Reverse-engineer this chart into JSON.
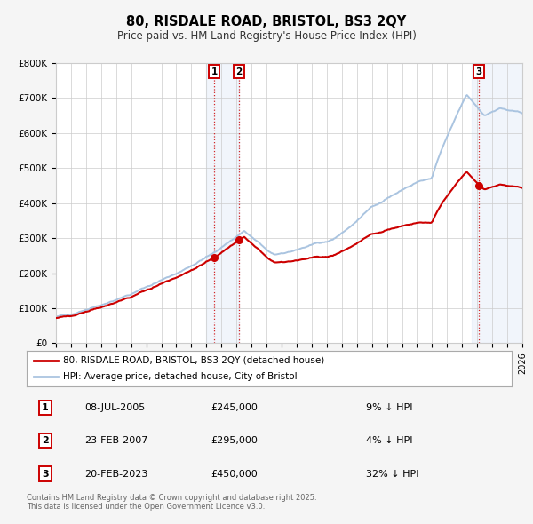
{
  "title": "80, RISDALE ROAD, BRISTOL, BS3 2QY",
  "subtitle": "Price paid vs. HM Land Registry's House Price Index (HPI)",
  "ylim": [
    0,
    800000
  ],
  "yticks": [
    0,
    100000,
    200000,
    300000,
    400000,
    500000,
    600000,
    700000,
    800000
  ],
  "ytick_labels": [
    "£0",
    "£100K",
    "£200K",
    "£300K",
    "£400K",
    "£500K",
    "£600K",
    "£700K",
    "£800K"
  ],
  "hpi_color": "#aac4e0",
  "price_color": "#cc0000",
  "background_color": "#f5f5f5",
  "plot_bg_color": "#ffffff",
  "grid_color": "#cccccc",
  "shade_color": "#c8d8f0",
  "sale1_date_num": 2005.52,
  "sale1_price": 245000,
  "sale1_label": "1",
  "sale1_date_str": "08-JUL-2005",
  "sale1_hpi_pct": "9% ↓ HPI",
  "sale2_date_num": 2007.14,
  "sale2_price": 295000,
  "sale2_label": "2",
  "sale2_date_str": "23-FEB-2007",
  "sale2_hpi_pct": "4% ↓ HPI",
  "sale3_date_num": 2023.13,
  "sale3_price": 450000,
  "sale3_label": "3",
  "sale3_date_str": "20-FEB-2023",
  "sale3_hpi_pct": "32% ↓ HPI",
  "legend_label_red": "80, RISDALE ROAD, BRISTOL, BS3 2QY (detached house)",
  "legend_label_blue": "HPI: Average price, detached house, City of Bristol",
  "footer": "Contains HM Land Registry data © Crown copyright and database right 2025.\nThis data is licensed under the Open Government Licence v3.0.",
  "xmin": 1995,
  "xmax": 2026
}
